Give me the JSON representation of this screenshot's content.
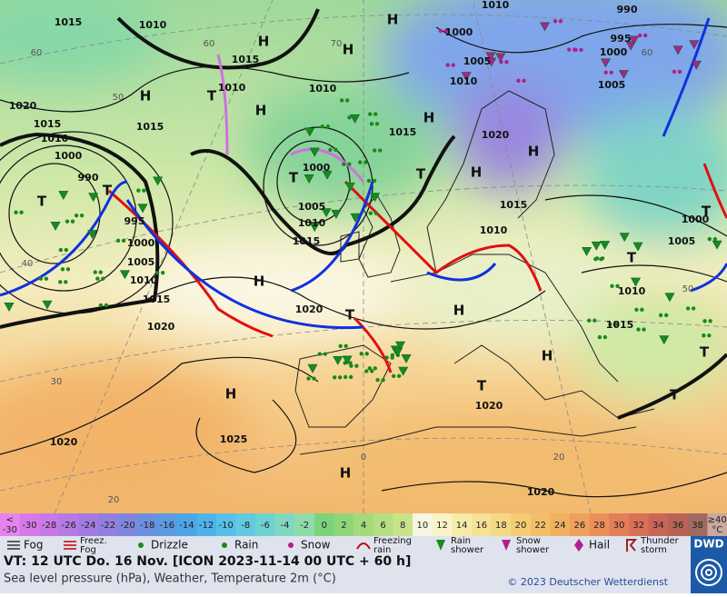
{
  "map": {
    "isobar_labels": [
      "1015",
      "1010",
      "1015",
      "1010",
      "1010",
      "1020",
      "1015",
      "1015",
      "1010",
      "1000",
      "990",
      "995",
      "1000",
      "1005",
      "1010",
      "1015",
      "1020",
      "1000",
      "1005",
      "1010",
      "1015",
      "1020",
      "1015",
      "1010",
      "1000",
      "1005",
      "1010",
      "1020",
      "1015",
      "1010",
      "990",
      "995",
      "1000",
      "1005",
      "1000",
      "1005",
      "1010",
      "1015",
      "1020",
      "1025",
      "1020",
      "1020"
    ],
    "temperature_labels": [
      "60",
      "50",
      "40",
      "30",
      "20",
      "60",
      "70",
      "60",
      "50",
      "20",
      "0"
    ],
    "centers": [
      "H",
      "T",
      "H",
      "H",
      "H",
      "T",
      "T",
      "T",
      "T",
      "H",
      "H",
      "H",
      "T",
      "T",
      "T",
      "H",
      "H",
      "T",
      "T",
      "T",
      "H",
      "H",
      "H",
      "H"
    ]
  },
  "scale": {
    "low": {
      "lines": [
        "<",
        "-30"
      ],
      "color": "#e684ee"
    },
    "steps": [
      {
        "label": "-30",
        "color": "#d77ae8"
      },
      {
        "label": "-28",
        "color": "#c67ae6"
      },
      {
        "label": "-26",
        "color": "#b57ae4"
      },
      {
        "label": "-24",
        "color": "#a47be2"
      },
      {
        "label": "-22",
        "color": "#937fe0"
      },
      {
        "label": "-20",
        "color": "#7f86de"
      },
      {
        "label": "-18",
        "color": "#6c90e0"
      },
      {
        "label": "-16",
        "color": "#5c9ae2"
      },
      {
        "label": "-14",
        "color": "#4ea6e6"
      },
      {
        "label": "-12",
        "color": "#4fb2ea"
      },
      {
        "label": "-10",
        "color": "#58bfe8"
      },
      {
        "label": "-8",
        "color": "#62cae0"
      },
      {
        "label": "-6",
        "color": "#6fd2d2"
      },
      {
        "label": "-4",
        "color": "#7fd8bf"
      },
      {
        "label": "-2",
        "color": "#8fdcaa"
      },
      {
        "label": "0",
        "color": "#7bd37b"
      },
      {
        "label": "2",
        "color": "#8fd67a"
      },
      {
        "label": "4",
        "color": "#a3da7c"
      },
      {
        "label": "6",
        "color": "#b6de82"
      },
      {
        "label": "8",
        "color": "#c8e38a"
      },
      {
        "label": "10",
        "color": "#f6f7e2"
      },
      {
        "label": "12",
        "color": "#f8f3c8"
      },
      {
        "label": "14",
        "color": "#f6eba8"
      },
      {
        "label": "16",
        "color": "#f5e296"
      },
      {
        "label": "18",
        "color": "#f4d884"
      },
      {
        "label": "20",
        "color": "#f3cc74"
      },
      {
        "label": "22",
        "color": "#f2bf68"
      },
      {
        "label": "24",
        "color": "#f0b060"
      },
      {
        "label": "26",
        "color": "#eea05c"
      },
      {
        "label": "28",
        "color": "#ea8f5a"
      },
      {
        "label": "30",
        "color": "#e47e58"
      },
      {
        "label": "32",
        "color": "#d97057"
      },
      {
        "label": "34",
        "color": "#c96757"
      },
      {
        "label": "36",
        "color": "#b76457"
      },
      {
        "label": "38",
        "color": "#a06a60"
      }
    ],
    "high": {
      "lines": [
        "≥40",
        "°C"
      ],
      "color": "#c8a8a0"
    }
  },
  "legend": [
    {
      "lines": [
        "Fog"
      ]
    },
    {
      "lines": [
        "Freez.",
        "Fog"
      ]
    },
    {
      "lines": [
        "Drizzle"
      ]
    },
    {
      "lines": [
        "Rain"
      ]
    },
    {
      "lines": [
        "Snow"
      ]
    },
    {
      "lines": [
        "Freezing",
        "rain"
      ]
    },
    {
      "lines": [
        "Rain",
        "shower"
      ]
    },
    {
      "lines": [
        "Snow",
        "shower"
      ]
    },
    {
      "lines": [
        "Hail"
      ]
    },
    {
      "lines": [
        "Thunder",
        "storm"
      ]
    }
  ],
  "footer": {
    "valid_time": "VT: 12 UTC Do.  16 Nov. [ICON 2023-11-14  00 UTC + 60 h]",
    "description": "Sea level pressure (hPa), Weather, Temperature 2m (°C)",
    "copyright": "© 2023 Deutscher Wetterdienst",
    "logo": "DWD"
  }
}
